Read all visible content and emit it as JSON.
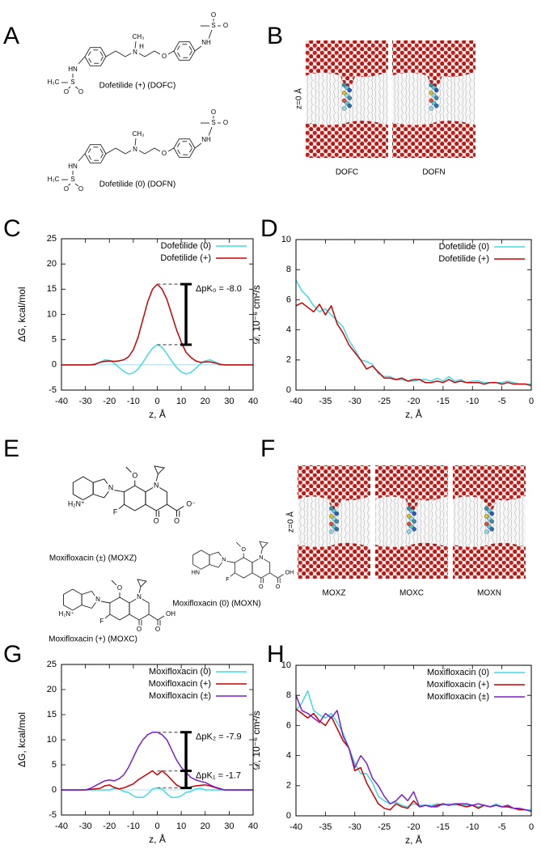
{
  "panel_labels": [
    "A",
    "B",
    "C",
    "D",
    "E",
    "F",
    "G",
    "H"
  ],
  "structures_A": [
    {
      "name": "Dofetilide (+) (DOFC)",
      "atoms": [
        "HN",
        "S",
        "H₃C",
        "O",
        "O",
        "N",
        "H",
        "CH₃",
        "O",
        "NH",
        "S",
        "O",
        "O"
      ]
    },
    {
      "name": "Dofetilide (0) (DOFN)",
      "atoms": [
        "HN",
        "S",
        "H₃C",
        "O",
        "O",
        "N",
        "CH₃",
        "O",
        "NH",
        "S",
        "O",
        "O"
      ]
    }
  ],
  "snapshots_B": {
    "axis_label": "z=0 Å",
    "labels": [
      "DOFC",
      "DOFN"
    ]
  },
  "structures_E": [
    {
      "name": "Moxifloxacin (±) (MOXZ)",
      "atoms": [
        "H₂N⁺",
        "N",
        "O",
        "N",
        "F",
        "O",
        "O",
        "O⁻"
      ]
    },
    {
      "name": "Moxifloxacin (0) (MOXN)",
      "atoms": [
        "HN",
        "N",
        "O",
        "N",
        "F",
        "O",
        "O",
        "OH"
      ]
    },
    {
      "name": "Moxifloxacin (+) (MOXC)",
      "atoms": [
        "H₂N⁺",
        "N",
        "O",
        "N",
        "F",
        "O",
        "O",
        "OH"
      ]
    }
  ],
  "snapshots_F": {
    "axis_label": "z=0 Å",
    "labels": [
      "MOXZ",
      "MOXC",
      "MOXN"
    ]
  },
  "chart_data": [
    {
      "type": "line",
      "xlabel": "z,  Å",
      "ylabel": "ΔG,  kcal/mol",
      "x": [
        -40,
        -38,
        -36,
        -34,
        -32,
        -30,
        -28,
        -26,
        -24,
        -22,
        -20,
        -18,
        -16,
        -14,
        -12,
        -10,
        -8,
        -6,
        -4,
        -2,
        0,
        2,
        4,
        6,
        8,
        10,
        12,
        14,
        16,
        18,
        20,
        22,
        24,
        26,
        28,
        30,
        32,
        34,
        36,
        38,
        40
      ],
      "series": [
        {
          "name": "Dofetilide (0)",
          "color": "#40dce6",
          "values": [
            0,
            0,
            0,
            0,
            0,
            0,
            0,
            0.2,
            0.5,
            1.0,
            0.9,
            0.3,
            -0.5,
            -1.3,
            -1.8,
            -1.6,
            -0.8,
            0.5,
            2.0,
            3.3,
            4.0,
            3.5,
            2.2,
            0.8,
            -0.5,
            -1.4,
            -1.8,
            -1.5,
            -0.7,
            0.2,
            0.8,
            1.0,
            0.6,
            0.2,
            0,
            0,
            0,
            0,
            0,
            0,
            0
          ]
        },
        {
          "name": "Dofetilide (+)",
          "color": "#cc0000",
          "values": [
            0,
            0,
            0,
            0,
            0,
            0,
            0,
            0.1,
            0.5,
            0.7,
            0.8,
            0.7,
            0.8,
            1.0,
            1.6,
            3.0,
            5.5,
            9.0,
            12.5,
            15.0,
            16.0,
            15.0,
            13.0,
            10.0,
            7.0,
            4.5,
            2.5,
            1.5,
            0.8,
            0.5,
            0.6,
            0.6,
            0.4,
            0.1,
            0,
            0,
            0,
            0,
            0,
            0,
            0
          ]
        }
      ],
      "xlim": [
        -40,
        40
      ],
      "xticks": [
        -40,
        -30,
        -20,
        -10,
        0,
        10,
        20,
        30,
        40
      ],
      "ylim": [
        -5,
        25
      ],
      "yticks": [
        -5,
        0,
        5,
        10,
        15,
        20,
        25
      ],
      "legend": "upper right",
      "annotations": [
        "ΔpK₀ = -8.0"
      ]
    },
    {
      "type": "line",
      "xlabel": "z,  Å",
      "ylabel": "𝒟, 10⁻⁶ cm²/s",
      "x": [
        -40,
        -39,
        -38,
        -37,
        -36,
        -35,
        -34,
        -33,
        -32,
        -31,
        -30,
        -29,
        -28,
        -27,
        -26,
        -25,
        -24,
        -23,
        -22,
        -21,
        -20,
        -19,
        -18,
        -17,
        -16,
        -15,
        -14,
        -13,
        -12,
        -11,
        -10,
        -9,
        -8,
        -7,
        -6,
        -5,
        -4,
        -3,
        -2,
        -1,
        0
      ],
      "series": [
        {
          "name": "Dofetilide (0)",
          "color": "#40dce6",
          "values": [
            7.3,
            6.6,
            6.2,
            5.6,
            5.2,
            5.4,
            5.0,
            4.6,
            4.2,
            3.3,
            2.7,
            2.0,
            1.9,
            1.7,
            1.1,
            0.9,
            0.9,
            0.7,
            0.7,
            0.6,
            0.6,
            0.7,
            0.7,
            0.6,
            0.8,
            0.6,
            0.9,
            0.6,
            0.7,
            0.5,
            0.6,
            0.6,
            0.5,
            0.5,
            0.5,
            0.5,
            0.6,
            0.5,
            0.4,
            0.4,
            0.4
          ]
        },
        {
          "name": "Dofetilide (+)",
          "color": "#cc0000",
          "values": [
            5.6,
            5.8,
            5.5,
            5.2,
            5.7,
            5.0,
            5.6,
            4.4,
            3.8,
            3.0,
            2.5,
            2.0,
            1.4,
            1.6,
            1.2,
            0.8,
            0.8,
            0.7,
            0.8,
            0.6,
            0.7,
            0.7,
            0.5,
            0.5,
            0.6,
            0.5,
            0.7,
            0.5,
            0.6,
            0.5,
            0.5,
            0.5,
            0.4,
            0.5,
            0.5,
            0.4,
            0.5,
            0.4,
            0.4,
            0.4,
            0.3
          ]
        }
      ],
      "xlim": [
        -40,
        0
      ],
      "xticks": [
        -40,
        -35,
        -30,
        -25,
        -20,
        -15,
        -10,
        -5,
        0
      ],
      "ylim": [
        0,
        10
      ],
      "yticks": [
        0,
        2,
        4,
        6,
        8,
        10
      ],
      "legend": "upper right"
    },
    {
      "type": "line",
      "xlabel": "z,  Å",
      "ylabel": "ΔG,  kcal/mol",
      "x": [
        -40,
        -38,
        -36,
        -34,
        -32,
        -30,
        -28,
        -26,
        -24,
        -22,
        -20,
        -18,
        -16,
        -14,
        -12,
        -10,
        -8,
        -6,
        -4,
        -2,
        0,
        2,
        4,
        6,
        8,
        10,
        12,
        14,
        16,
        18,
        20,
        22,
        24,
        26,
        28,
        30,
        32,
        34,
        36,
        38,
        40
      ],
      "series": [
        {
          "name": "Moxifloxacin (0)",
          "color": "#40dce6",
          "values": [
            0,
            0,
            0,
            0,
            0,
            0,
            0,
            0,
            0,
            0,
            0,
            0.3,
            0.2,
            -0.3,
            -0.5,
            -1.2,
            -1.5,
            -1.5,
            -0.8,
            0.2,
            0.4,
            0.2,
            -0.8,
            -1.5,
            -1.5,
            -1.2,
            -0.5,
            -0.3,
            0.2,
            0.3,
            0,
            0,
            0,
            0,
            0,
            0,
            0,
            0,
            0,
            0,
            0
          ]
        },
        {
          "name": "Moxifloxacin (+)",
          "color": "#cc0000",
          "values": [
            0,
            0,
            0,
            0,
            0,
            0,
            0.1,
            0.2,
            0.3,
            0.8,
            1.0,
            0.5,
            0.2,
            0.4,
            0.8,
            1.2,
            2.0,
            2.6,
            3.2,
            3.8,
            3.0,
            3.8,
            3.0,
            2.0,
            1.0,
            0.5,
            0.3,
            0.6,
            0.8,
            0.9,
            1.0,
            0.8,
            0.5,
            0.2,
            0,
            0,
            0,
            0,
            0,
            0,
            0
          ]
        },
        {
          "name": "Moxifloxacin (±)",
          "color": "#7a1fd2",
          "values": [
            0,
            0,
            0,
            0,
            0,
            0,
            0.3,
            0.8,
            1.3,
            1.8,
            2.0,
            1.8,
            2.2,
            3.0,
            4.5,
            6.5,
            8.5,
            10.0,
            11.0,
            11.5,
            11.5,
            11.0,
            10.0,
            8.0,
            6.0,
            4.5,
            3.5,
            2.5,
            2.0,
            1.7,
            1.5,
            1.0,
            0.6,
            0.3,
            0,
            0,
            0,
            0,
            0,
            0,
            0
          ]
        }
      ],
      "xlim": [
        -40,
        40
      ],
      "xticks": [
        -40,
        -30,
        -20,
        -10,
        0,
        10,
        20,
        30,
        40
      ],
      "ylim": [
        -5,
        25
      ],
      "yticks": [
        -5,
        0,
        5,
        10,
        15,
        20,
        25
      ],
      "legend": "upper right",
      "annotations": [
        "ΔpK₂ = -7.9",
        "ΔpK₁ = -1.7"
      ]
    },
    {
      "type": "line",
      "xlabel": "z,  Å",
      "ylabel": "𝒟, 10⁻⁶ cm²/s",
      "x": [
        -40,
        -39,
        -38,
        -37,
        -36,
        -35,
        -34,
        -33,
        -32,
        -31,
        -30,
        -29,
        -28,
        -27,
        -26,
        -25,
        -24,
        -23,
        -22,
        -21,
        -20,
        -19,
        -18,
        -17,
        -16,
        -15,
        -14,
        -13,
        -12,
        -11,
        -10,
        -9,
        -8,
        -7,
        -6,
        -5,
        -4,
        -3,
        -2,
        -1,
        0
      ],
      "series": [
        {
          "name": "Moxifloxacin (0)",
          "color": "#40dce6",
          "values": [
            7.0,
            7.5,
            8.3,
            7.0,
            6.7,
            6.5,
            6.8,
            6.2,
            5.5,
            4.5,
            3.5,
            2.8,
            2.8,
            2.2,
            1.3,
            1.0,
            0.8,
            0.9,
            0.7,
            0.6,
            0.8,
            0.7,
            0.7,
            0.7,
            0.8,
            0.7,
            0.8,
            0.7,
            0.8,
            0.7,
            0.7,
            0.6,
            0.7,
            0.6,
            0.8,
            0.6,
            0.6,
            0.5,
            0.5,
            0.4,
            0.4
          ]
        },
        {
          "name": "Moxifloxacin (+)",
          "color": "#cc0000",
          "values": [
            7.1,
            6.8,
            6.5,
            6.8,
            6.3,
            6.0,
            6.6,
            5.8,
            5.0,
            4.5,
            3.0,
            3.2,
            2.2,
            1.5,
            0.8,
            0.5,
            0.4,
            0.8,
            0.6,
            0.5,
            1.0,
            0.6,
            0.7,
            0.6,
            0.7,
            0.8,
            0.7,
            0.8,
            0.7,
            0.6,
            0.7,
            0.5,
            0.7,
            0.6,
            0.7,
            0.6,
            0.6,
            0.5,
            0.4,
            0.4,
            0.3
          ]
        },
        {
          "name": "Moxifloxacin (±)",
          "color": "#7a1fd2",
          "values": [
            8.0,
            7.0,
            6.8,
            6.5,
            6.2,
            6.8,
            6.5,
            7.0,
            5.3,
            4.5,
            3.2,
            4.0,
            3.5,
            2.5,
            2.0,
            1.3,
            0.8,
            1.0,
            1.4,
            1.0,
            1.6,
            0.6,
            0.7,
            0.6,
            0.6,
            0.8,
            0.7,
            0.8,
            0.8,
            0.8,
            0.7,
            0.8,
            0.7,
            0.6,
            0.7,
            0.6,
            0.7,
            0.5,
            0.5,
            0.4,
            0.3
          ]
        }
      ],
      "xlim": [
        -40,
        0
      ],
      "xticks": [
        -40,
        -35,
        -30,
        -25,
        -20,
        -15,
        -10,
        -5,
        0
      ],
      "ylim": [
        0,
        10
      ],
      "yticks": [
        0,
        2,
        4,
        6,
        8,
        10
      ],
      "legend": "upper right"
    }
  ]
}
